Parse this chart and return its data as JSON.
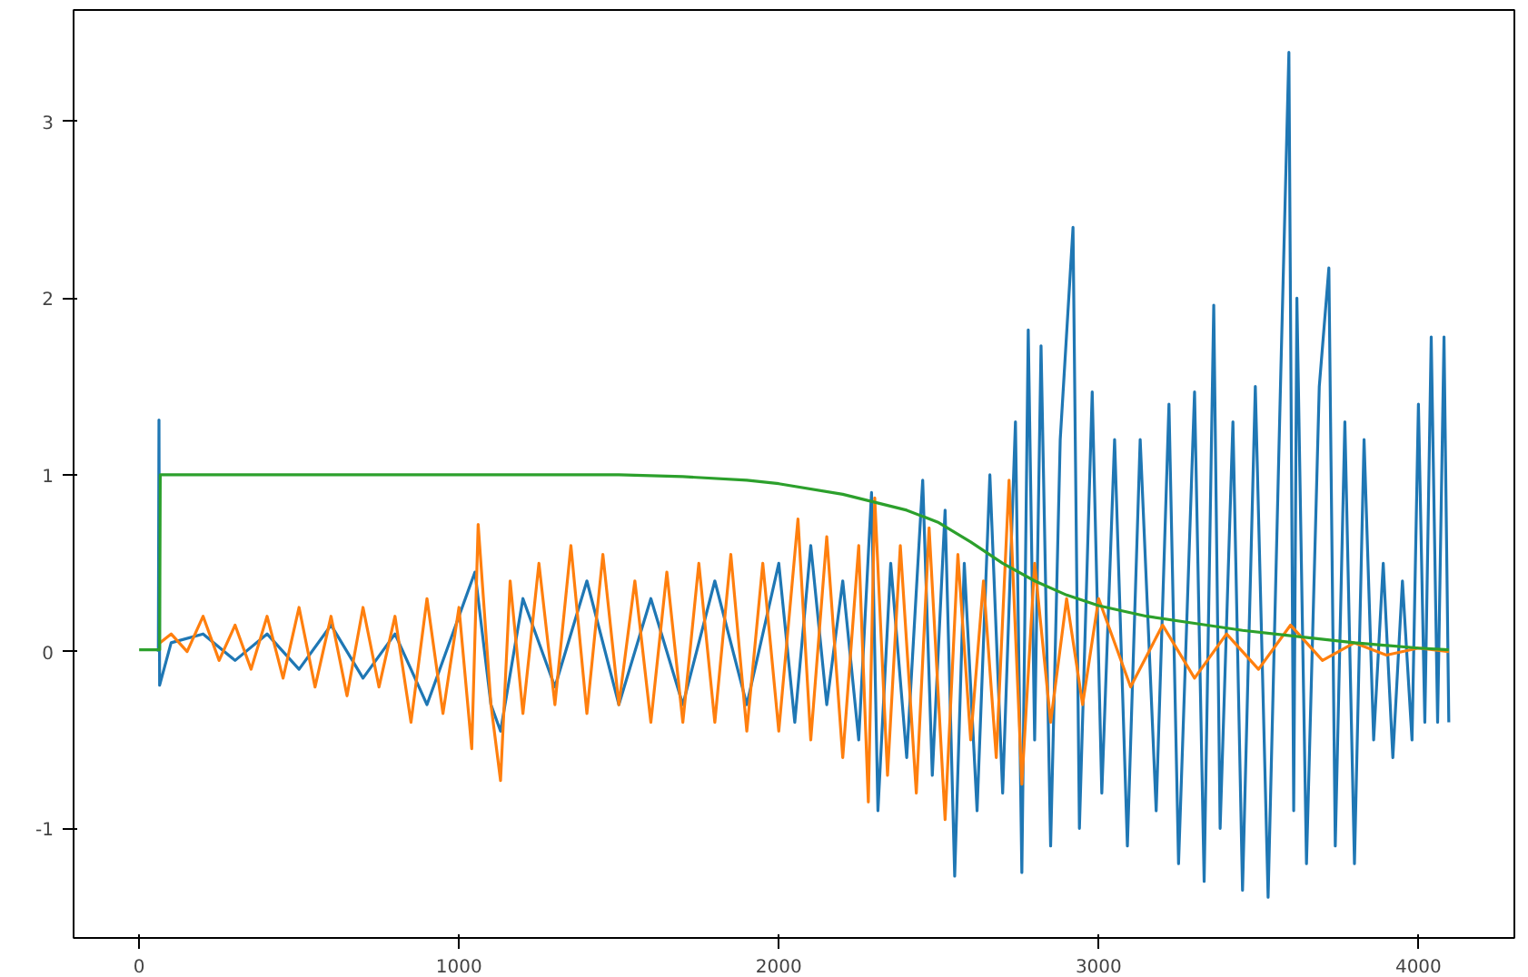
{
  "chart_data": {
    "type": "line",
    "xlim": [
      -205,
      4300
    ],
    "ylim": [
      -1.62,
      3.63
    ],
    "xticks": [
      0,
      1000,
      2000,
      3000,
      4000
    ],
    "yticks": [
      -1,
      0,
      1,
      2,
      3
    ],
    "grid": false,
    "series": [
      {
        "color": "#1f77b4",
        "x": [
          60,
          62,
          64,
          100,
          200,
          300,
          400,
          500,
          600,
          700,
          800,
          900,
          1000,
          1050,
          1100,
          1130,
          1200,
          1300,
          1400,
          1500,
          1600,
          1700,
          1800,
          1900,
          2000,
          2050,
          2100,
          2150,
          2200,
          2250,
          2290,
          2310,
          2350,
          2400,
          2450,
          2480,
          2520,
          2550,
          2580,
          2620,
          2660,
          2700,
          2740,
          2760,
          2780,
          2800,
          2820,
          2850,
          2880,
          2920,
          2940,
          2980,
          3010,
          3050,
          3090,
          3130,
          3180,
          3220,
          3250,
          3300,
          3330,
          3360,
          3380,
          3420,
          3450,
          3490,
          3530,
          3570,
          3595,
          3610,
          3620,
          3650,
          3690,
          3720,
          3740,
          3770,
          3800,
          3830,
          3860,
          3890,
          3920,
          3950,
          3980,
          4000,
          4020,
          4040,
          4060,
          4080,
          4095
        ],
        "values": [
          0,
          1.31,
          -0.19,
          0.05,
          0.1,
          -0.05,
          0.1,
          -0.1,
          0.15,
          -0.15,
          0.1,
          -0.3,
          0.2,
          0.45,
          -0.3,
          -0.45,
          0.3,
          -0.2,
          0.4,
          -0.3,
          0.3,
          -0.3,
          0.4,
          -0.3,
          0.5,
          -0.4,
          0.6,
          -0.3,
          0.4,
          -0.5,
          0.9,
          -0.9,
          0.5,
          -0.6,
          0.97,
          -0.7,
          0.8,
          -1.27,
          0.5,
          -0.9,
          1.0,
          -0.8,
          1.3,
          -1.25,
          1.82,
          -0.5,
          1.73,
          -1.1,
          1.2,
          2.4,
          -1.0,
          1.47,
          -0.8,
          1.2,
          -1.1,
          1.2,
          -0.9,
          1.4,
          -1.2,
          1.47,
          -1.3,
          1.96,
          -1.0,
          1.3,
          -1.35,
          1.5,
          -1.39,
          1.6,
          3.39,
          -0.9,
          2.0,
          -1.2,
          1.5,
          2.17,
          -1.1,
          1.3,
          -1.2,
          1.2,
          -0.5,
          0.5,
          -0.6,
          0.4,
          -0.5,
          1.4,
          -0.4,
          1.78,
          -0.4,
          1.78,
          -0.4
        ]
      },
      {
        "color": "#ff7f0e",
        "x": [
          65,
          100,
          150,
          200,
          250,
          300,
          350,
          400,
          450,
          500,
          550,
          600,
          650,
          700,
          750,
          800,
          850,
          900,
          950,
          1000,
          1040,
          1060,
          1100,
          1130,
          1160,
          1200,
          1250,
          1300,
          1350,
          1400,
          1450,
          1500,
          1550,
          1600,
          1650,
          1700,
          1750,
          1800,
          1850,
          1900,
          1950,
          2000,
          2060,
          2100,
          2150,
          2200,
          2250,
          2280,
          2300,
          2340,
          2380,
          2430,
          2470,
          2520,
          2560,
          2600,
          2640,
          2680,
          2720,
          2760,
          2800,
          2850,
          2900,
          2950,
          3000,
          3100,
          3200,
          3300,
          3400,
          3500,
          3600,
          3700,
          3800,
          3900,
          4000,
          4095
        ],
        "values": [
          0.05,
          0.1,
          0,
          0.2,
          -0.05,
          0.15,
          -0.1,
          0.2,
          -0.15,
          0.25,
          -0.2,
          0.2,
          -0.25,
          0.25,
          -0.2,
          0.2,
          -0.4,
          0.3,
          -0.35,
          0.25,
          -0.55,
          0.72,
          -0.3,
          -0.73,
          0.4,
          -0.35,
          0.5,
          -0.3,
          0.6,
          -0.35,
          0.55,
          -0.3,
          0.4,
          -0.4,
          0.45,
          -0.4,
          0.5,
          -0.4,
          0.55,
          -0.45,
          0.5,
          -0.45,
          0.75,
          -0.5,
          0.65,
          -0.6,
          0.6,
          -0.85,
          0.87,
          -0.7,
          0.6,
          -0.8,
          0.7,
          -0.95,
          0.55,
          -0.5,
          0.4,
          -0.6,
          0.97,
          -0.75,
          0.5,
          -0.4,
          0.3,
          -0.3,
          0.3,
          -0.2,
          0.15,
          -0.15,
          0.1,
          -0.1,
          0.15,
          -0.05,
          0.05,
          -0.02,
          0.02,
          0
        ]
      },
      {
        "color": "#2ca02c",
        "x": [
          0,
          64,
          66,
          500,
          1000,
          1500,
          1700,
          1900,
          2000,
          2200,
          2400,
          2500,
          2600,
          2700,
          2800,
          2900,
          3000,
          3150,
          3300,
          3450,
          3600,
          3800,
          4000,
          4095
        ],
        "values": [
          0.01,
          0.01,
          1,
          1,
          1,
          1,
          0.99,
          0.97,
          0.95,
          0.89,
          0.8,
          0.73,
          0.62,
          0.5,
          0.4,
          0.32,
          0.26,
          0.2,
          0.16,
          0.12,
          0.09,
          0.05,
          0.02,
          0.01
        ]
      }
    ]
  }
}
